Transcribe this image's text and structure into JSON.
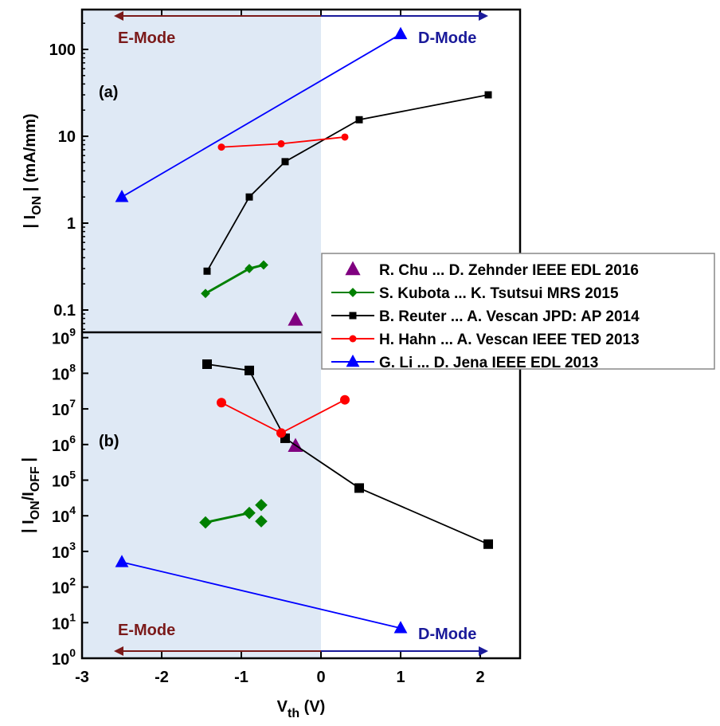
{
  "chart_data": [
    {
      "type": "line",
      "panel_label": "(a)",
      "ylabel": "| I_ON | (mA/mm)",
      "yscale": "log",
      "ylim": [
        0.055,
        288
      ],
      "xlim": [
        -3,
        2.5
      ],
      "yticks": [
        "0.1",
        "1",
        "10",
        "100"
      ],
      "annotations": {
        "left": "E-Mode",
        "right": "D-Mode"
      },
      "series": [
        {
          "name": "R. Chu ... D. Zehnder IEEE EDL 2016",
          "color": "#800080",
          "marker": "triangle",
          "line": false,
          "points": [
            [
              -0.32,
              0.077
            ]
          ]
        },
        {
          "name": "S. Kubota ... K. Tsutsui MRS 2015",
          "color": "#008000",
          "marker": "diamond",
          "line": true,
          "points": [
            [
              -1.45,
              0.155
            ],
            [
              -0.9,
              0.3
            ],
            [
              -0.72,
              0.33
            ]
          ]
        },
        {
          "name": "B. Reuter ... A. Vescan JPD: AP 2014",
          "color": "#000000",
          "marker": "square",
          "line": true,
          "points": [
            [
              -1.43,
              0.28
            ],
            [
              -0.9,
              2
            ],
            [
              -0.45,
              5.1
            ],
            [
              0.48,
              15.5
            ],
            [
              2.1,
              30
            ]
          ]
        },
        {
          "name": "H. Hahn ... A. Vescan IEEE TED 2013",
          "color": "#ff0000",
          "marker": "circle",
          "line": true,
          "points": [
            [
              -1.25,
              7.5
            ],
            [
              -0.5,
              8.2
            ],
            [
              0.3,
              9.8
            ]
          ]
        },
        {
          "name": "G. Li ... D. Jena IEEE EDL 2013",
          "color": "#0000ff",
          "marker": "triangle",
          "line": true,
          "points": [
            [
              -2.5,
              2
            ],
            [
              1,
              150
            ]
          ]
        }
      ]
    },
    {
      "type": "line",
      "panel_label": "(b)",
      "ylabel": "| I_ON/I_OFF |",
      "yscale": "log",
      "ylim": [
        1,
        1400000000.0
      ],
      "xlim": [
        -3,
        2.5
      ],
      "xlabel": "V_th (V)",
      "xticks": [
        "-3",
        "-2",
        "-1",
        "0",
        "1",
        "2"
      ],
      "yticks_exp": [
        "0",
        "1",
        "2",
        "3",
        "4",
        "5",
        "6",
        "7",
        "8",
        "9"
      ],
      "annotations": {
        "left": "E-Mode",
        "right": "D-Mode"
      },
      "series": [
        {
          "name": "R. Chu ... D. Zehnder IEEE EDL 2016",
          "color": "#800080",
          "marker": "triangle",
          "line": false,
          "points": [
            [
              -0.32,
              900000
            ]
          ]
        },
        {
          "name": "S. Kubota ... K. Tsutsui MRS 2015",
          "color": "#008000",
          "marker": "diamond",
          "line": true,
          "points": [
            [
              -1.45,
              6500
            ],
            [
              -0.9,
              12000
            ]
          ],
          "extra_points": [
            [
              -0.75,
              20000
            ],
            [
              -0.75,
              7000
            ]
          ]
        },
        {
          "name": "B. Reuter ... A. Vescan JPD: AP 2014",
          "color": "#000000",
          "marker": "square",
          "line": true,
          "points": [
            [
              -1.43,
              180000000
            ],
            [
              -0.9,
              120000000
            ],
            [
              -0.45,
              1500000
            ],
            [
              0.48,
              60000
            ],
            [
              2.1,
              1600
            ]
          ]
        },
        {
          "name": "H. Hahn ... A. Vescan IEEE TED 2013",
          "color": "#ff0000",
          "marker": "circle",
          "line": true,
          "points": [
            [
              -1.25,
              15000000
            ],
            [
              -0.5,
              2100000
            ],
            [
              0.3,
              18000000
            ]
          ]
        },
        {
          "name": "G. Li ... D. Jena IEEE EDL 2013",
          "color": "#0000ff",
          "marker": "triangle",
          "line": true,
          "points": [
            [
              -2.5,
              500
            ],
            [
              1,
              7
            ]
          ]
        }
      ]
    }
  ],
  "colors": {
    "shade": "#dfe9f5",
    "emode": "#7b1a1a",
    "dmode": "#1a1a9a"
  }
}
